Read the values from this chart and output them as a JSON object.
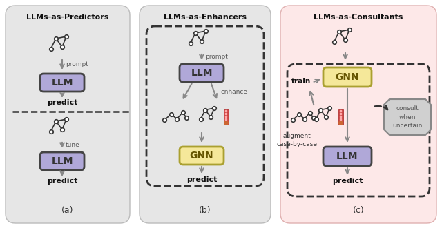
{
  "fig_width": 6.4,
  "fig_height": 3.34,
  "bg_color": "#ffffff",
  "panel_a_bg": "#e6e6e6",
  "panel_b_bg": "#e6e6e6",
  "panel_c_bg": "#fde8e8",
  "llm_box_color": "#b0a8d8",
  "llm_box_edge": "#444444",
  "gnn_box_color": "#f5e89a",
  "gnn_box_edge": "#aaa030",
  "consult_box_color": "#d0d0d0",
  "consult_box_edge": "#888888",
  "arrow_color": "#888888",
  "dashed_color": "#333333",
  "title_a": "LLMs-as-Predictors",
  "title_b": "LLMs-as-Enhancers",
  "title_c": "LLMs-as-Consultants",
  "label_a": "(a)",
  "label_b": "(b)",
  "label_c": "(c)"
}
